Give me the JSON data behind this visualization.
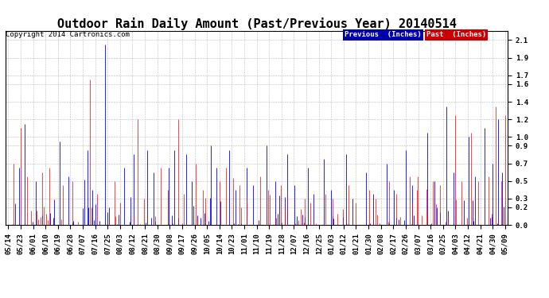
{
  "title": "Outdoor Rain Daily Amount (Past/Previous Year) 20140514",
  "copyright": "Copyright 2014 Cartronics.com",
  "legend_prev": "Previous  (Inches)",
  "legend_past": "Past  (Inches)",
  "legend_prev_bg": "#0000AA",
  "legend_past_bg": "#CC0000",
  "yticks": [
    0.0,
    0.2,
    0.3,
    0.5,
    0.7,
    0.9,
    1.0,
    1.2,
    1.4,
    1.6,
    1.7,
    1.9,
    2.1
  ],
  "ylim": [
    0.0,
    2.2
  ],
  "background_color": "#ffffff",
  "plot_bg": "#ffffff",
  "grid_color": "#aaaaaa",
  "x_labels": [
    "05/14",
    "05/23",
    "06/01",
    "06/10",
    "06/19",
    "06/28",
    "07/07",
    "07/16",
    "07/25",
    "08/03",
    "08/12",
    "08/21",
    "08/30",
    "09/08",
    "09/17",
    "09/26",
    "10/05",
    "10/14",
    "10/23",
    "11/01",
    "11/10",
    "11/19",
    "11/28",
    "12/07",
    "12/16",
    "12/25",
    "01/03",
    "01/12",
    "01/21",
    "01/30",
    "02/08",
    "02/17",
    "02/26",
    "03/07",
    "03/16",
    "03/25",
    "04/03",
    "04/12",
    "04/21",
    "04/30",
    "05/09"
  ],
  "title_fontsize": 11,
  "axis_fontsize": 6.5,
  "copyright_fontsize": 6.5,
  "prev_color": "#0000FF",
  "past_color": "#FF0000"
}
